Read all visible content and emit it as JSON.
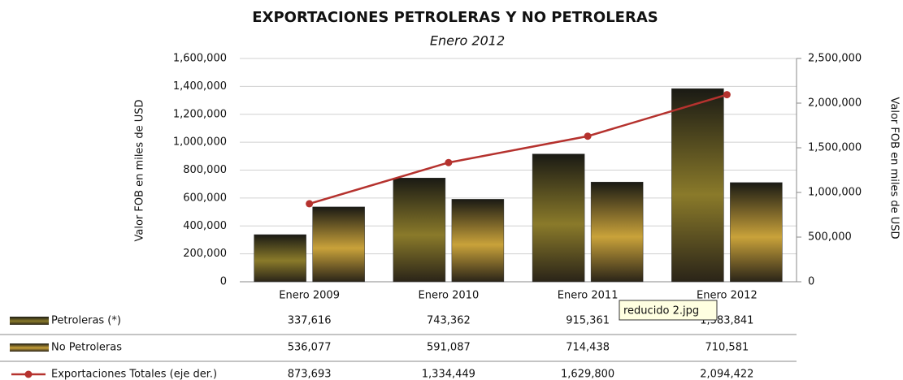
{
  "chart_data": {
    "type": "bar",
    "title": "EXPORTACIONES PETROLERAS Y NO PETROLERAS",
    "subtitle": "Enero 2012",
    "y_label": "Valor FOB  en miles de USD",
    "y2_label": "Valor FOB en miles de USD",
    "tooltip": "reducido 2.jpg",
    "categories": [
      "Enero 2009",
      "Enero 2010",
      "Enero 2011",
      "Enero 2012"
    ],
    "series": [
      {
        "name": "Petroleras (*)",
        "color": "#8a7a2a",
        "values": [
          337616,
          743362,
          915361,
          1383841
        ],
        "value_labels": [
          "337,616",
          "743,362",
          "915,361",
          "1,383,841"
        ]
      },
      {
        "name": "No Petroleras",
        "color": "#c9a23a",
        "values": [
          536077,
          591087,
          714438,
          710581
        ],
        "value_labels": [
          "536,077",
          "591,087",
          "714,438",
          "710,581"
        ]
      },
      {
        "name": "Exportaciones Totales  (eje der.)",
        "color": "#b5322e",
        "axis": "y2",
        "type": "line",
        "values": [
          873693,
          1334449,
          1629800,
          2094422
        ],
        "value_labels": [
          "873,693",
          "1,334,449",
          "1,629,800",
          "2,094,422"
        ]
      }
    ],
    "ylim": [
      0,
      1600000
    ],
    "yticks": [
      0,
      {
        "value": 200000,
        "label": "200,000"
      },
      {
        "value": 400000,
        "label": "400,000"
      },
      {
        "value": 600000,
        "label": "600,000"
      },
      {
        "value": 800000,
        "label": "800,000"
      },
      {
        "value": 1000000,
        "label": "1,000,000"
      },
      {
        "value": 1200000,
        "label": "1,200,000"
      },
      {
        "value": 1400000,
        "label": "1,400,000"
      },
      {
        "value": 1600000,
        "label": "1,600,000"
      }
    ],
    "y2lim": [
      0,
      2500000
    ],
    "y2ticks": [
      0,
      {
        "value": 500000,
        "label": "500,000"
      },
      {
        "value": 1000000,
        "label": "1,000,000"
      },
      {
        "value": 1500000,
        "label": "1,500,000"
      },
      {
        "value": 2000000,
        "label": "2,000,000"
      },
      {
        "value": 2500000,
        "label": "2,500,000"
      }
    ],
    "grid": true
  }
}
